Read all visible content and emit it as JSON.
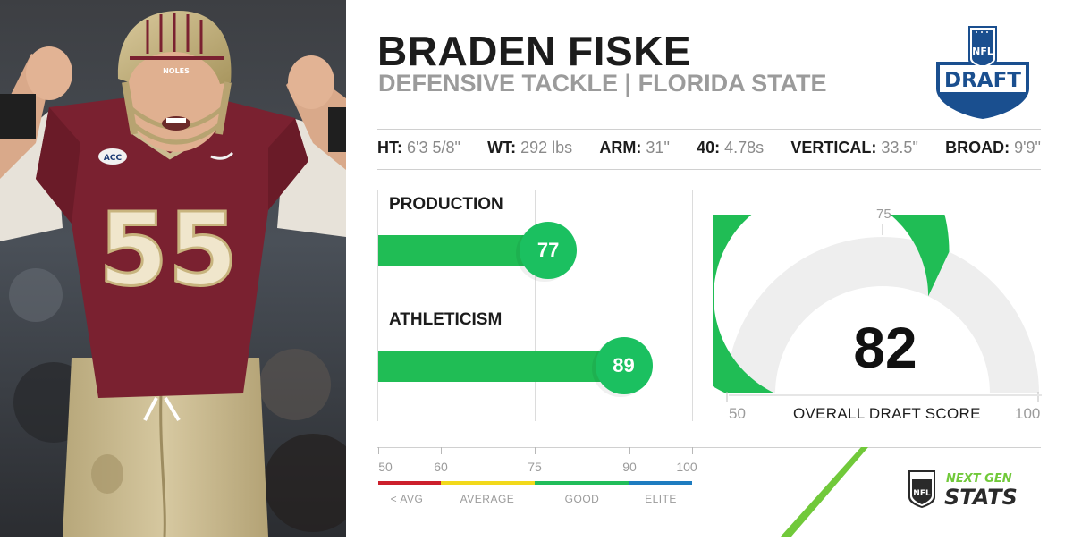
{
  "player": {
    "name": "BRADEN FISKE",
    "position_school": "DEFENSIVE TACKLE | FLORIDA STATE",
    "jersey_number": "55",
    "helmet_text": "NOLES",
    "patch_text": "ACC"
  },
  "logos": {
    "draft_logo_nfl": "NFL",
    "draft_logo_text": "DRAFT",
    "ngs_nfl": "NFL",
    "ngs_next_gen": "NEXT GEN",
    "ngs_stats": "STATS"
  },
  "measurements": [
    {
      "label": "HT:",
      "value": "6'3 5/8\""
    },
    {
      "label": "WT:",
      "value": "292 lbs"
    },
    {
      "label": "ARM:",
      "value": "31\""
    },
    {
      "label": "40:",
      "value": "4.78s"
    },
    {
      "label": "VERTICAL:",
      "value": "33.5\""
    },
    {
      "label": "BROAD:",
      "value": "9'9\""
    }
  ],
  "scores": {
    "production": {
      "label": "PRODUCTION",
      "value": 77,
      "display": "77"
    },
    "athleticism": {
      "label": "ATHLETICISM",
      "value": 89,
      "display": "89"
    },
    "overall": {
      "label": "OVERALL DRAFT SCORE",
      "value": 82,
      "display": "82"
    }
  },
  "gauge": {
    "min_label": "50",
    "max_label": "100",
    "marker_label": "75",
    "min": 50,
    "max": 100,
    "marker": 75
  },
  "scale": {
    "ticks": [
      "50",
      "60",
      "75",
      "90",
      "100"
    ],
    "categories": [
      "< AVG",
      "AVERAGE",
      "GOOD",
      "ELITE"
    ]
  },
  "colors": {
    "green": "#20bd55",
    "bubble": "#1bc060",
    "below_avg": "#cc1f2c",
    "average": "#f2d91b",
    "good": "#21bd5a",
    "elite": "#1e7cc0",
    "gauge_track": "#eeeeee",
    "ngs_green": "#71c93a",
    "jersey": "#7a2130",
    "gold": "#cbbb90",
    "draft_blue": "#1a4f8f",
    "draft_red": "#c8102e"
  }
}
